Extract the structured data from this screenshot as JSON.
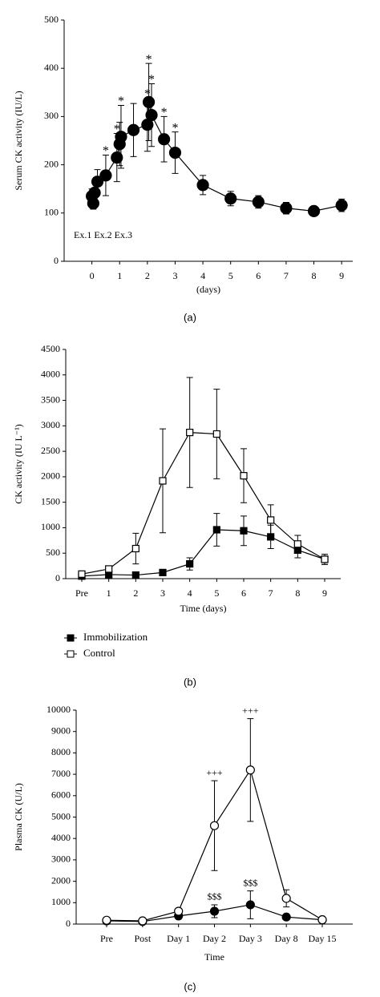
{
  "chart_data": [
    {
      "type": "line",
      "caption": "(a)",
      "ylabel": "Serum CK activity (IU/L)",
      "xlabel": "(days)",
      "note": "Ex.1 Ex.2 Ex.3",
      "xlim": [
        -1,
        9.4
      ],
      "xticks": [
        0,
        1,
        2,
        3,
        4,
        5,
        6,
        7,
        8,
        9
      ],
      "ylim": [
        0,
        500
      ],
      "yticks": [
        0,
        100,
        200,
        300,
        400,
        500
      ],
      "x": [
        0,
        0.05,
        0.1,
        0.2,
        0.5,
        0.9,
        1.0,
        1.05,
        1.5,
        2.0,
        2.05,
        2.15,
        2.6,
        3.0,
        4,
        5,
        6,
        7,
        8,
        9
      ],
      "series": [
        {
          "color": "#000000",
          "marker": "circle",
          "filled": true,
          "values": [
            135,
            120,
            142,
            165,
            178,
            215,
            243,
            258,
            272,
            283,
            330,
            303,
            253,
            225,
            158,
            130,
            123,
            110,
            104,
            116
          ],
          "errors": [
            15,
            12,
            10,
            25,
            42,
            50,
            45,
            65,
            55,
            55,
            80,
            65,
            47,
            43,
            20,
            15,
            13,
            12,
            7,
            13
          ],
          "markers": [
            null,
            null,
            null,
            null,
            "*",
            "*",
            null,
            "*",
            null,
            "*",
            "*",
            "*",
            "*",
            "*",
            null,
            null,
            null,
            null,
            null,
            null
          ]
        }
      ]
    },
    {
      "type": "line",
      "caption": "(b)",
      "ylabel": "CK activity (IU L⁻¹)",
      "xlabel": "Time (days)",
      "categories": [
        "Pre",
        "1",
        "2",
        "3",
        "4",
        "5",
        "6",
        "7",
        "8",
        "9"
      ],
      "ylim": [
        0,
        4500
      ],
      "yticks": [
        0,
        500,
        1000,
        1500,
        2000,
        2500,
        3000,
        3500,
        4000,
        4500
      ],
      "series": [
        {
          "name": "Immobilization",
          "color": "#000000",
          "marker": "square",
          "filled": true,
          "values": [
            50,
            80,
            70,
            120,
            290,
            960,
            940,
            820,
            560,
            380
          ],
          "errors": [
            null,
            null,
            null,
            null,
            120,
            320,
            290,
            230,
            150,
            100
          ]
        },
        {
          "name": "Control",
          "color": "#000000",
          "marker": "square",
          "filled": false,
          "values": [
            90,
            190,
            590,
            1920,
            2870,
            2840,
            2020,
            1150,
            680,
            380
          ],
          "errors": [
            null,
            null,
            300,
            1020,
            1080,
            880,
            530,
            300,
            170,
            100
          ]
        }
      ]
    },
    {
      "type": "line",
      "caption": "(c)",
      "ylabel": "Plasma CK (U/L)",
      "xlabel": "Time",
      "categories": [
        "Pre",
        "Post",
        "Day 1",
        "Day 2",
        "Day 3",
        "Day 8",
        "Day 15"
      ],
      "ylim": [
        0,
        10000
      ],
      "yticks": [
        0,
        1000,
        2000,
        3000,
        4000,
        5000,
        6000,
        7000,
        8000,
        9000,
        10000
      ],
      "series": [
        {
          "color": "#000000",
          "marker": "circle",
          "filled": true,
          "values": [
            150,
            120,
            380,
            600,
            900,
            330,
            200
          ],
          "errors": [
            null,
            null,
            null,
            300,
            650,
            null,
            null
          ],
          "markers": [
            null,
            null,
            null,
            "$$$",
            "$$$",
            null,
            null
          ]
        },
        {
          "color": "#000000",
          "marker": "circle",
          "filled": false,
          "values": [
            180,
            150,
            600,
            4600,
            7200,
            1200,
            200
          ],
          "errors": [
            null,
            80,
            null,
            2100,
            2400,
            400,
            null
          ],
          "markers": [
            null,
            null,
            null,
            "+++",
            "+++",
            null,
            null
          ]
        }
      ]
    }
  ]
}
